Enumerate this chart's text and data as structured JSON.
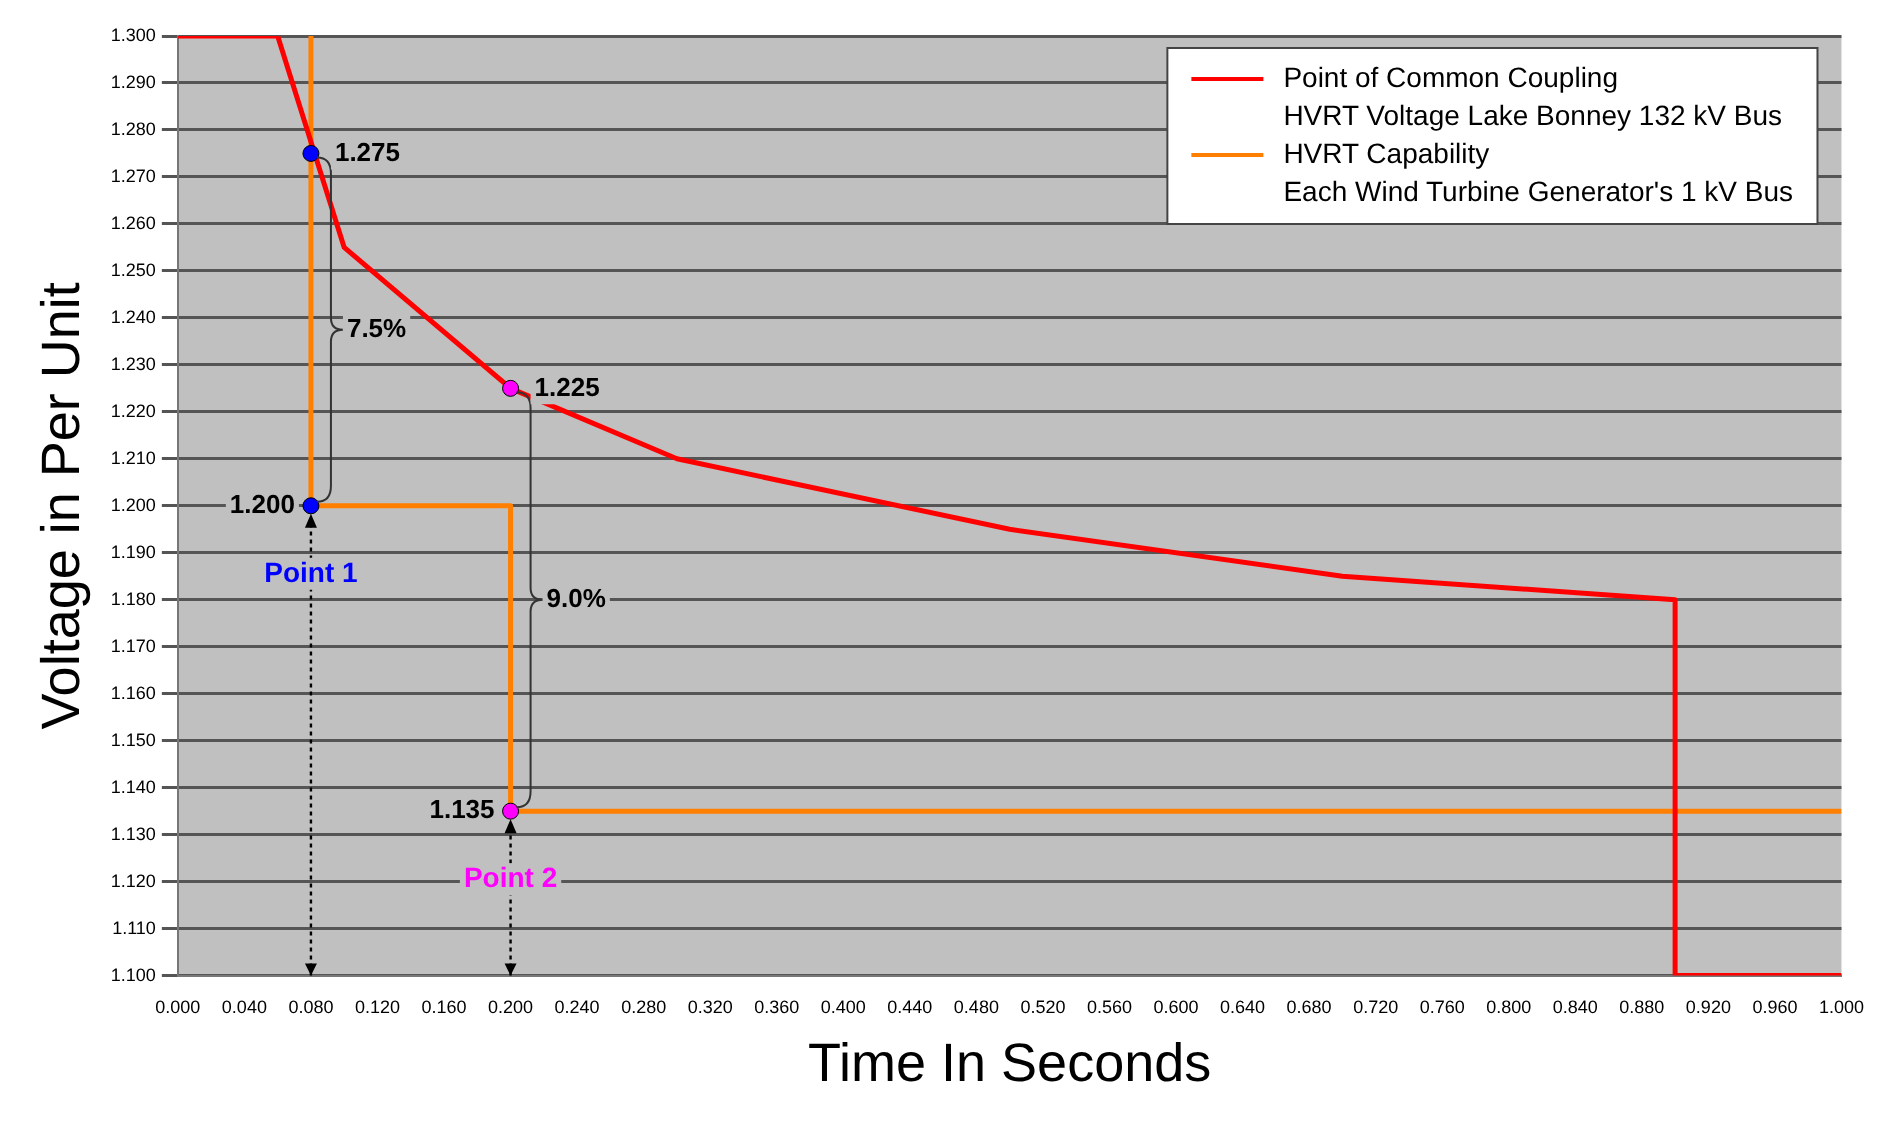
{
  "chart_data": {
    "type": "line",
    "xlabel": "Time In Seconds",
    "ylabel": "Voltage in Per Unit",
    "xlim": [
      0,
      1
    ],
    "ylim": [
      1.1,
      1.3
    ],
    "xticks": [
      {
        "value": 0,
        "label": "0.000"
      },
      {
        "value": 0.04,
        "label": "0.040"
      },
      {
        "value": 0.08,
        "label": "0.080"
      },
      {
        "value": 0.12,
        "label": "0.120"
      },
      {
        "value": 0.16,
        "label": "0.160"
      },
      {
        "value": 0.2,
        "label": "0.200"
      },
      {
        "value": 0.24,
        "label": "0.240"
      },
      {
        "value": 0.28,
        "label": "0.280"
      },
      {
        "value": 0.32,
        "label": "0.320"
      },
      {
        "value": 0.36,
        "label": "0.360"
      },
      {
        "value": 0.4,
        "label": "0.400"
      },
      {
        "value": 0.44,
        "label": "0.440"
      },
      {
        "value": 0.48,
        "label": "0.480"
      },
      {
        "value": 0.52,
        "label": "0.520"
      },
      {
        "value": 0.56,
        "label": "0.560"
      },
      {
        "value": 0.6,
        "label": "0.600"
      },
      {
        "value": 0.64,
        "label": "0.640"
      },
      {
        "value": 0.68,
        "label": "0.680"
      },
      {
        "value": 0.72,
        "label": "0.720"
      },
      {
        "value": 0.76,
        "label": "0.760"
      },
      {
        "value": 0.8,
        "label": "0.800"
      },
      {
        "value": 0.84,
        "label": "0.840"
      },
      {
        "value": 0.88,
        "label": "0.880"
      },
      {
        "value": 0.92,
        "label": "0.920"
      },
      {
        "value": 0.96,
        "label": "0.960"
      },
      {
        "value": 1,
        "label": "1.000"
      }
    ],
    "yticks": [
      {
        "value": 1.1,
        "label": "1.100"
      },
      {
        "value": 1.11,
        "label": "1.110"
      },
      {
        "value": 1.12,
        "label": "1.120"
      },
      {
        "value": 1.13,
        "label": "1.130"
      },
      {
        "value": 1.14,
        "label": "1.140"
      },
      {
        "value": 1.15,
        "label": "1.150"
      },
      {
        "value": 1.16,
        "label": "1.160"
      },
      {
        "value": 1.17,
        "label": "1.170"
      },
      {
        "value": 1.18,
        "label": "1.180"
      },
      {
        "value": 1.19,
        "label": "1.190"
      },
      {
        "value": 1.2,
        "label": "1.200"
      },
      {
        "value": 1.21,
        "label": "1.210"
      },
      {
        "value": 1.22,
        "label": "1.220"
      },
      {
        "value": 1.23,
        "label": "1.230"
      },
      {
        "value": 1.24,
        "label": "1.240"
      },
      {
        "value": 1.25,
        "label": "1.250"
      },
      {
        "value": 1.26,
        "label": "1.260"
      },
      {
        "value": 1.27,
        "label": "1.270"
      },
      {
        "value": 1.28,
        "label": "1.280"
      },
      {
        "value": 1.29,
        "label": "1.290"
      },
      {
        "value": 1.3,
        "label": "1.300"
      }
    ],
    "grid": "y",
    "legend": "top right",
    "marker": "none",
    "line_style": "solid",
    "series": [
      {
        "name": "Point of Common Coupling\nHVRT Voltage Lake Bonney 132 kV Bus",
        "color": "#ff0000",
        "x": [
          0,
          0.06,
          0.1,
          0.2,
          0.3,
          0.5,
          0.7,
          0.9,
          0.9,
          1.0
        ],
        "values": [
          1.3,
          1.3,
          1.255,
          1.225,
          1.21,
          1.195,
          1.185,
          1.18,
          1.1,
          1.1
        ]
      },
      {
        "name": "HVRT Capability\nEach Wind Turbine Generator's 1 kV Bus",
        "color": "#ff7f00",
        "x": [
          0.08,
          0.08,
          0.2,
          0.2,
          1.0
        ],
        "values": [
          1.3,
          1.2,
          1.2,
          1.135,
          1.135
        ]
      },
      {
        "type": "scatter",
        "name": "Point 1",
        "color": "#0000ff",
        "marker": "circle",
        "x": [
          0.08,
          0.08
        ],
        "values": [
          1.275,
          1.2
        ],
        "value_labels": [
          "1.275",
          "1.200"
        ]
      },
      {
        "type": "scatter",
        "name": "Point 2",
        "color": "#ff00ff",
        "marker": "circle",
        "x": [
          0.2,
          0.2
        ],
        "values": [
          1.225,
          1.135
        ],
        "value_labels": [
          "1.225",
          "1.135"
        ]
      }
    ],
    "annotations": [
      {
        "text": "7.5%",
        "x": 0.08,
        "y": 1.2375
      },
      {
        "text": "9.0%",
        "x": 0.2,
        "y": 1.18
      }
    ]
  }
}
